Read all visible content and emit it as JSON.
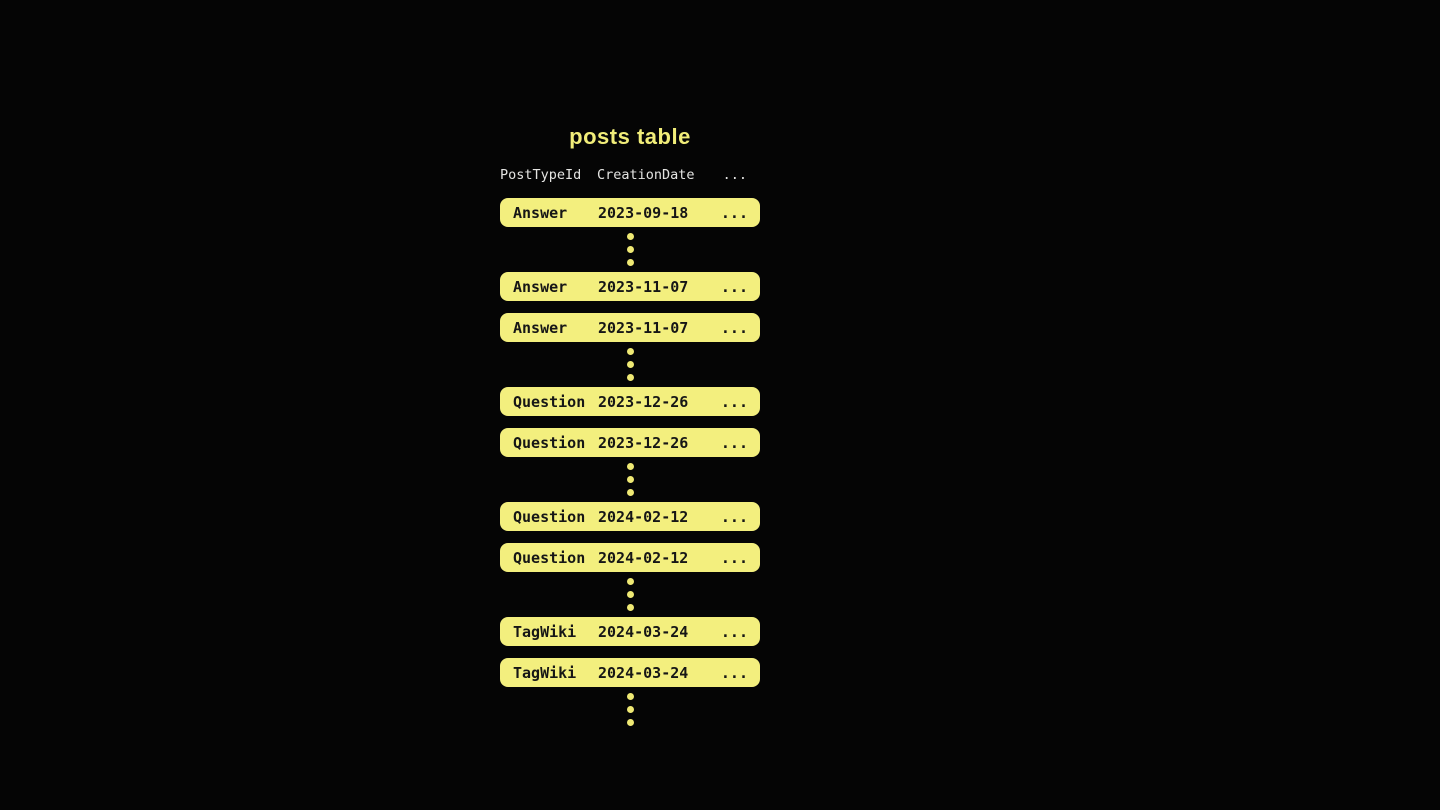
{
  "title": "posts table",
  "columns": [
    "PostTypeId",
    "CreationDate",
    "..."
  ],
  "ellipsis_cell": "...",
  "rows": [
    {
      "type": "Answer",
      "date": "2023-09-18"
    },
    {
      "dots": true
    },
    {
      "type": "Answer",
      "date": "2023-11-07"
    },
    {
      "type": "Answer",
      "date": "2023-11-07"
    },
    {
      "dots": true
    },
    {
      "type": "Question",
      "date": "2023-12-26"
    },
    {
      "type": "Question",
      "date": "2023-12-26"
    },
    {
      "dots": true
    },
    {
      "type": "Question",
      "date": "2024-02-12"
    },
    {
      "type": "Question",
      "date": "2024-02-12"
    },
    {
      "dots": true
    },
    {
      "type": "TagWiki",
      "date": "2024-03-24"
    },
    {
      "type": "TagWiki",
      "date": "2024-03-24"
    },
    {
      "dots": true
    }
  ],
  "colors": {
    "background": "#050505",
    "row_fill": "#f3ef7e",
    "row_text": "#161616",
    "header_text": "#e4e4e2",
    "title_text": "#f1ed79",
    "dot": "#efe974"
  }
}
